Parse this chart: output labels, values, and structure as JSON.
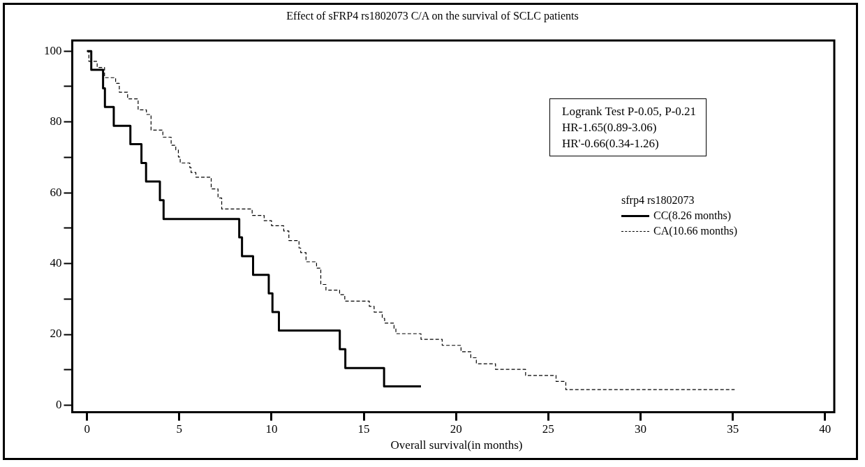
{
  "chart_data": {
    "type": "step",
    "title": "Effect of sFRP4 rs1802073 C/A on the survival of SCLC patients",
    "xlabel": "Overall survival(in months)",
    "legend_title": "sfrp4 rs1802073",
    "legend": "right",
    "annotations": [
      "Logrank Test P-0.05, P-0.21",
      "HR-1.65(0.89-3.06)",
      "HR'-0.66(0.34-1.26)"
    ],
    "xlim": [
      -0.8,
      40.5
    ],
    "xticks": [
      0,
      5,
      10,
      15,
      20,
      25,
      30,
      35,
      40
    ],
    "ylim": [
      -2,
      103
    ],
    "yticks": [
      0,
      {
        "value": 10,
        "label": null
      },
      20,
      {
        "value": 30,
        "label": null
      },
      40,
      {
        "value": 50,
        "label": null
      },
      60,
      {
        "value": 70,
        "label": null
      },
      80,
      {
        "value": 90,
        "label": null
      },
      100
    ],
    "grid": false,
    "marker": "none",
    "series": [
      {
        "name": "CC(8.26 months)",
        "color": "#000000",
        "line_style": "solid",
        "x": [
          0,
          0.23,
          0.87,
          0.97,
          1.45,
          2.35,
          2.95,
          3.2,
          3.95,
          4.15,
          8.25,
          8.4,
          9.0,
          9.85,
          10.05,
          10.4,
          13.7,
          14.0,
          16.1,
          18.1
        ],
        "values": [
          100,
          94.7,
          89.5,
          84.2,
          78.9,
          73.7,
          68.4,
          63.2,
          57.9,
          52.6,
          47.4,
          42.1,
          36.8,
          31.6,
          26.3,
          21.1,
          15.8,
          10.5,
          5.3,
          5.3
        ]
      },
      {
        "name": "CA(10.66 months)",
        "color": "#000000",
        "line_style": "dashed",
        "x": [
          0,
          0.1,
          0.55,
          0.95,
          1.55,
          1.75,
          2.2,
          2.77,
          3.22,
          3.47,
          4.11,
          4.56,
          4.81,
          4.95,
          5.05,
          5.57,
          5.64,
          5.9,
          6.73,
          7.1,
          7.3,
          8.95,
          9.6,
          10.0,
          10.66,
          10.94,
          11.49,
          11.58,
          11.87,
          12.44,
          12.67,
          12.95,
          13.69,
          13.97,
          15.3,
          15.56,
          16.0,
          16.13,
          16.64,
          16.74,
          18.1,
          19.25,
          20.27,
          20.8,
          21.1,
          22.14,
          23.77,
          25.42,
          25.95,
          35.1
        ],
        "values": [
          100,
          97.1,
          95.4,
          92.5,
          90.9,
          88.4,
          86.5,
          83.4,
          82.1,
          77.7,
          75.7,
          73.4,
          72.1,
          70.1,
          68.4,
          67.1,
          65.7,
          64.4,
          61.1,
          58.5,
          55.4,
          53.6,
          52.1,
          50.7,
          49.2,
          46.5,
          44.4,
          43.1,
          40.5,
          38.7,
          34.1,
          32.5,
          31.2,
          29.4,
          27.9,
          26.3,
          24.5,
          23.2,
          21.7,
          20.2,
          18.6,
          16.9,
          15.1,
          13.4,
          11.7,
          10.1,
          8.4,
          6.7,
          4.4,
          4.4
        ]
      }
    ]
  }
}
